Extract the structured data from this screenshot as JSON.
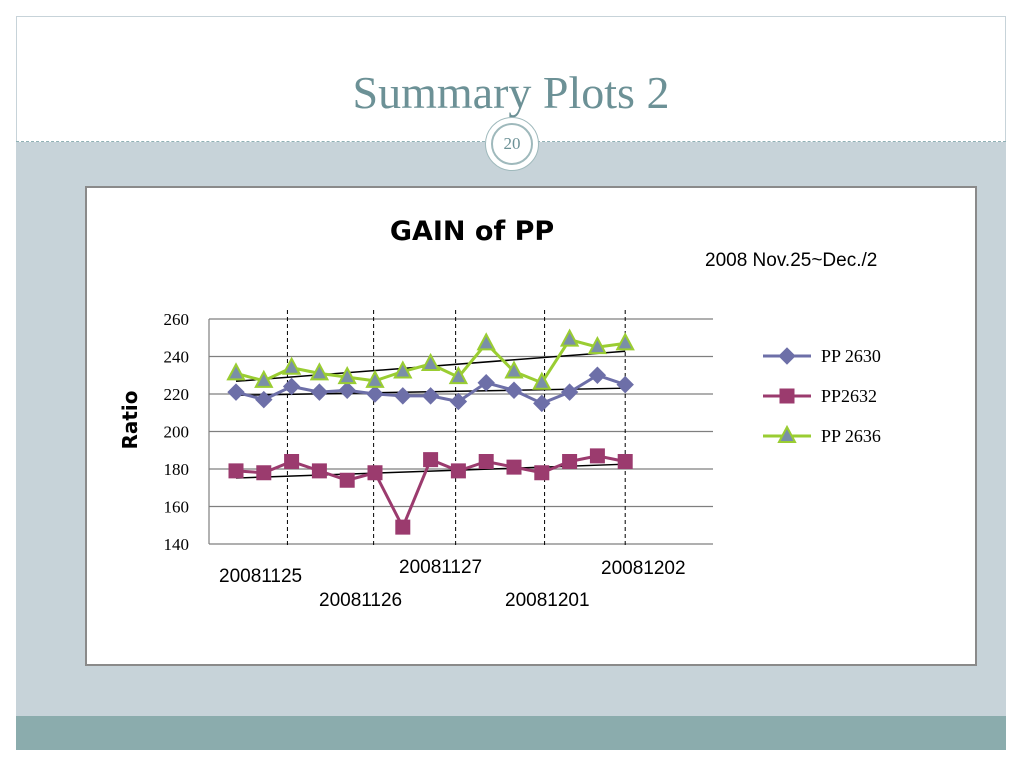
{
  "slide": {
    "title": "Summary Plots 2",
    "page_number": "20"
  },
  "colors": {
    "title": "#6c9196",
    "content_bg": "#c7d3d9",
    "footer": "#8bacad",
    "series_pp2630": "#6d6fa8",
    "series_pp2632": "#9b3b6e",
    "series_pp2636": "#9acd32",
    "trend": "#000000"
  },
  "chart_data": {
    "type": "line",
    "title": "GAIN of PP",
    "subtitle": "2008 Nov.25~Dec./2",
    "ylabel": "Ratio",
    "xlabel": "",
    "ylim": [
      140,
      260
    ],
    "yticks": [
      140,
      160,
      180,
      200,
      220,
      240,
      260
    ],
    "grid": true,
    "legend_position": "right",
    "date_labels": [
      "20081125",
      "20081126",
      "20081127",
      "20081201",
      "20081202"
    ],
    "x": [
      1,
      2,
      3,
      4,
      5,
      6,
      7,
      8,
      9,
      10,
      11,
      12,
      13,
      14,
      15
    ],
    "series": [
      {
        "name": "PP 2630",
        "marker": "diamond",
        "values": [
          221,
          217,
          224,
          221,
          222,
          220,
          219,
          219,
          216,
          226,
          222,
          215,
          221,
          230,
          225
        ]
      },
      {
        "name": "PP2632",
        "marker": "square",
        "values": [
          179,
          178,
          184,
          179,
          174,
          178,
          149,
          185,
          179,
          184,
          181,
          178,
          184,
          187,
          184
        ]
      },
      {
        "name": "PP 2636",
        "marker": "triangle",
        "values": [
          231,
          227,
          234,
          231,
          229,
          227,
          232,
          236,
          229,
          247,
          232,
          226,
          249,
          245,
          247
        ]
      }
    ]
  }
}
